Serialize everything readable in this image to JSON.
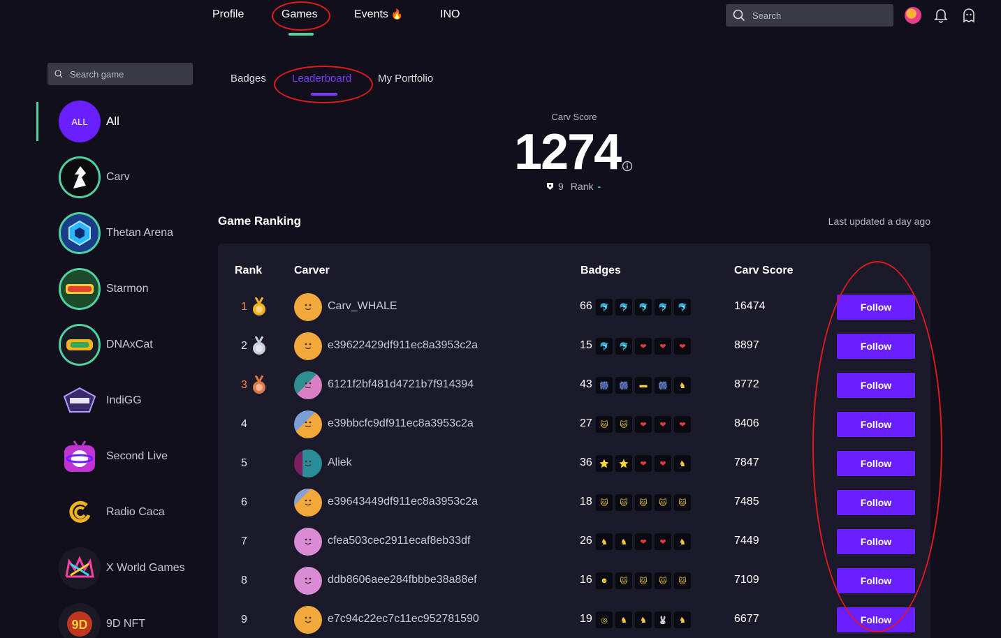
{
  "nav": {
    "profile": "Profile",
    "games": "Games",
    "events": "Events",
    "ino": "INO",
    "search_placeholder": "Search"
  },
  "sidebar": {
    "search_placeholder": "Search game",
    "games": [
      {
        "label": "All",
        "logo": "ALL"
      },
      {
        "label": "Carv",
        "logo": "carv-logo-icon"
      },
      {
        "label": "Thetan Arena",
        "logo": "thetan-logo-icon"
      },
      {
        "label": "Starmon",
        "logo": "starmon-logo-icon"
      },
      {
        "label": "DNAxCat",
        "logo": "dnaxcat-logo-icon"
      },
      {
        "label": "IndiGG",
        "logo": "indigg-logo-icon"
      },
      {
        "label": "Second Live",
        "logo": "second-live-logo-icon"
      },
      {
        "label": "Radio Caca",
        "logo": "radio-caca-logo-icon"
      },
      {
        "label": "X World Games",
        "logo": "x-world-logo-icon"
      },
      {
        "label": "9D NFT",
        "logo": "9d-nft-logo-icon"
      }
    ]
  },
  "tabs": {
    "badges": "Badges",
    "leaderboard": "Leaderboard",
    "portfolio": "My Portfolio"
  },
  "score": {
    "label": "Carv Score",
    "value": "1274",
    "rank_number": "9",
    "rank_label": "Rank",
    "rank_change": "-"
  },
  "ranking": {
    "title": "Game Ranking",
    "last_updated": "Last updated a day ago",
    "headers": {
      "rank": "Rank",
      "carver": "Carver",
      "badges": "Badges",
      "score": "Carv Score"
    },
    "follow_label": "Follow",
    "rows": [
      {
        "rank": "1",
        "name": "Carv_WHALE",
        "badges": "66",
        "score": "16474"
      },
      {
        "rank": "2",
        "name": "e39622429df911ec8a3953c2a",
        "badges": "15",
        "score": "8897"
      },
      {
        "rank": "3",
        "name": "6121f2bf481d4721b7f914394",
        "badges": "43",
        "score": "8772"
      },
      {
        "rank": "4",
        "name": "e39bbcfc9df911ec8a3953c2a",
        "badges": "27",
        "score": "8406"
      },
      {
        "rank": "5",
        "name": "Aliek",
        "badges": "36",
        "score": "7847"
      },
      {
        "rank": "6",
        "name": "e39643449df911ec8a3953c2a",
        "badges": "18",
        "score": "7485"
      },
      {
        "rank": "7",
        "name": "cfea503cec2911ecaf8eb33df",
        "badges": "26",
        "score": "7449"
      },
      {
        "rank": "8",
        "name": "ddb8606aee284fbbbe38a88ef",
        "badges": "16",
        "score": "7109"
      },
      {
        "rank": "9",
        "name": "e7c94c22ec7c11ec952781590",
        "badges": "19",
        "score": "6677"
      }
    ]
  },
  "colors": {
    "accent_purple": "#6a1fff",
    "accent_green": "#4fd1a1",
    "annotation_red": "#e01a1a",
    "gold": "#ff8a3d"
  }
}
